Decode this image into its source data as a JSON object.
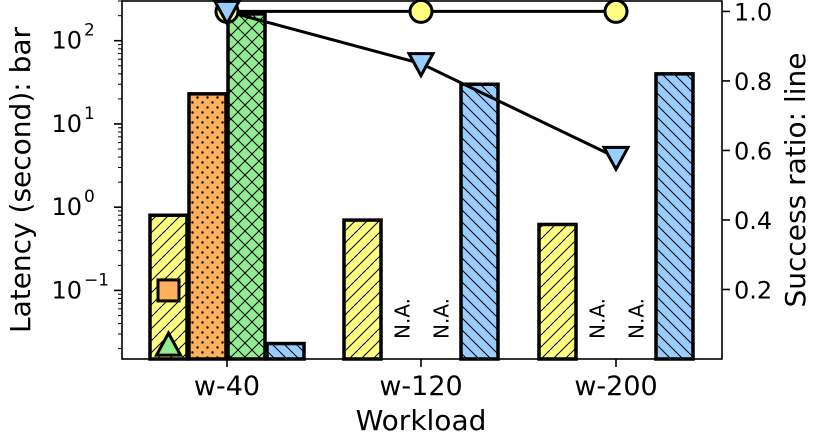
{
  "chart_data": {
    "type": "bar",
    "xlabel": "Workload",
    "ylabel": "Latency (second): bar",
    "y2label": "Success ratio: line",
    "categories": [
      "w-40",
      "w-120",
      "w-200"
    ],
    "yscale": "log",
    "ylim": [
      0.015,
      300
    ],
    "y_ticks": [
      {
        "value": 0.1,
        "base": "10",
        "exp": "−1"
      },
      {
        "value": 1,
        "base": "10",
        "exp": "0"
      },
      {
        "value": 10,
        "base": "10",
        "exp": "1"
      },
      {
        "value": 100,
        "base": "10",
        "exp": "2"
      }
    ],
    "y2lim": [
      0.0,
      1.03
    ],
    "y2_ticks": [
      "0.2",
      "0.4",
      "0.6",
      "0.8",
      "1.0"
    ],
    "bar_series": [
      {
        "fill": "#ffff80",
        "hatch": "diag-fwd",
        "values": [
          0.8,
          0.7,
          0.62
        ]
      },
      {
        "fill": "#ffb05c",
        "hatch": "dots",
        "values": [
          23,
          null,
          null
        ]
      },
      {
        "fill": "#90ee90",
        "hatch": "cross",
        "values": [
          210,
          null,
          null
        ]
      },
      {
        "fill": "#99ccff",
        "hatch": "diag-back",
        "values": [
          0.023,
          30,
          40
        ]
      }
    ],
    "na_label": "N.A.",
    "line_series": [
      {
        "marker": "circle",
        "fill": "#ffff80",
        "values": [
          1.0,
          1.0,
          1.0
        ]
      },
      {
        "marker": "triangle-down",
        "fill": "#99ccff",
        "values": [
          1.0,
          0.85,
          0.58
        ]
      }
    ],
    "extra_markers": [
      {
        "marker": "square",
        "fill": "#ffb05c",
        "category": "w-40",
        "value": 0.1
      },
      {
        "marker": "triangle-up",
        "fill": "#90ee90",
        "category": "w-40",
        "value": 0.022
      }
    ]
  }
}
